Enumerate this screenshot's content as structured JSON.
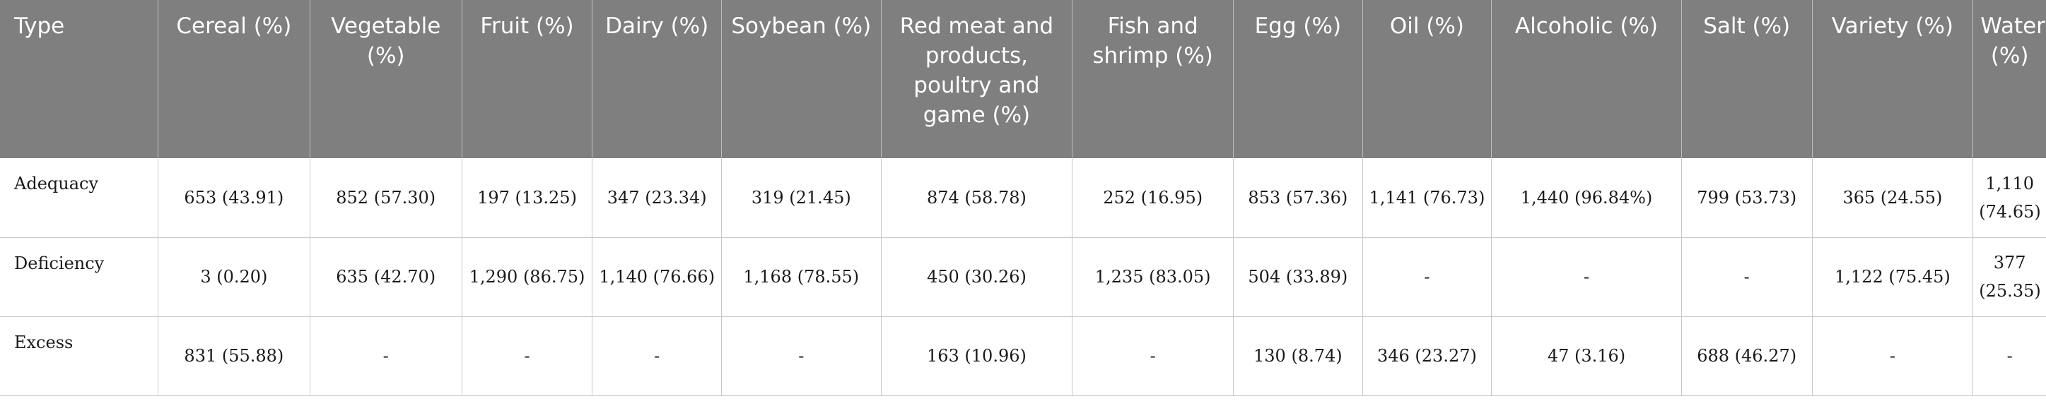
{
  "table": {
    "headers": [
      "Type",
      "Cereal (%)",
      "Vegetable (%)",
      "Fruit (%)",
      "Dairy (%)",
      "Soybean (%)",
      "Red meat and products, poultry and game (%)",
      "Fish and shrimp (%)",
      "Egg (%)",
      "Oil (%)",
      "Alcoholic (%)",
      "Salt (%)",
      "Variety (%)",
      "Water (%)"
    ],
    "rows": [
      [
        "Adequacy",
        "653 (43.91)",
        "852 (57.30)",
        "197 (13.25)",
        "347 (23.34)",
        "319 (21.45)",
        "874 (58.78)",
        "252 (16.95)",
        "853 (57.36)",
        "1,141 (76.73)",
        "1,440 (96.84%)",
        "799 (53.73)",
        "365 (24.55)",
        "1,110 (74.65)"
      ],
      [
        "Deficiency",
        "3 (0.20)",
        "635 (42.70)",
        "1,290 (86.75)",
        "1,140 (76.66)",
        "1,168 (78.55)",
        "450 (30.26)",
        "1,235 (83.05)",
        "504 (33.89)",
        "-",
        "-",
        "-",
        "1,122 (75.45)",
        "377 (25.35)"
      ],
      [
        "Excess",
        "831 (55.88)",
        "-",
        "-",
        "-",
        "-",
        "163 (10.96)",
        "-",
        "130 (8.74)",
        "346 (23.27)",
        "47 (3.16)",
        "688 (46.27)",
        "-",
        "-"
      ]
    ]
  }
}
